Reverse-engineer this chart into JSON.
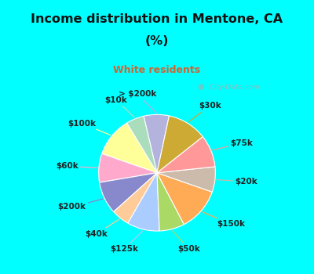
{
  "title_line1": "Income distribution in Mentone, CA",
  "title_line2": "(%)",
  "subtitle": "White residents",
  "title_color": "#111111",
  "subtitle_color": "#cc6633",
  "bg_outer": "#00ffff",
  "bg_chart": "#e0f5ee",
  "labels": [
    "> $200k",
    "$10k",
    "$100k",
    "$60k",
    "$200k",
    "$40k",
    "$125k",
    "$50k",
    "$150k",
    "$20k",
    "$75k",
    "$30k"
  ],
  "values": [
    7,
    5,
    11,
    8,
    9,
    5,
    9,
    7,
    12,
    7,
    9,
    11
  ],
  "colors": [
    "#b3b3dd",
    "#aaddbb",
    "#ffff99",
    "#ffaacc",
    "#8888cc",
    "#ffcc99",
    "#aaccff",
    "#aad966",
    "#ffaa55",
    "#ccbbaa",
    "#ff9999",
    "#ccaa33"
  ],
  "label_fontsize": 7.5,
  "watermark": "  City-Data.com"
}
